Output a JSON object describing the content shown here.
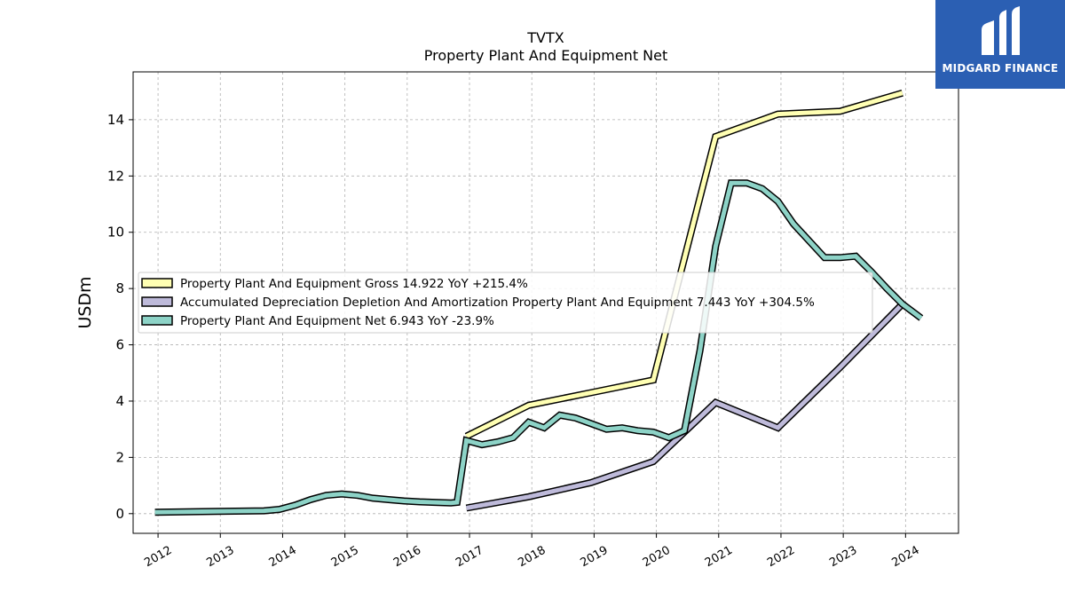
{
  "chart_data": {
    "type": "line",
    "title": "TVTX",
    "subtitle": "Property Plant And Equipment Net",
    "ylabel": "USDm",
    "xlabel": "",
    "xlim": [
      2011.6,
      2024.85
    ],
    "ylim": [
      -0.7,
      15.7
    ],
    "yticks": [
      0,
      2,
      4,
      6,
      8,
      10,
      12,
      14
    ],
    "xticks": [
      "2012",
      "2013",
      "2014",
      "2015",
      "2016",
      "2017",
      "2018",
      "2019",
      "2020",
      "2021",
      "2022",
      "2023",
      "2024"
    ],
    "grid": true,
    "legend_position": "center-left",
    "series": [
      {
        "name": "Property Plant And Equipment Gross  14.922 YoY +215.4%",
        "color": "#ffffb3",
        "x": [
          2016.95,
          2017.95,
          2018.95,
          2019.95,
          2020.95,
          2021.95,
          2022.95,
          2023.95
        ],
        "y": [
          2.75,
          3.85,
          4.3,
          4.75,
          13.4,
          14.2,
          14.3,
          14.95
        ]
      },
      {
        "name": "Accumulated Depreciation Depletion And Amortization Property Plant And Equipment  7.443 YoY +304.5%",
        "color": "#bebada",
        "x": [
          2016.95,
          2017.95,
          2018.95,
          2019.95,
          2020.95,
          2021.95,
          2022.95,
          2023.95
        ],
        "y": [
          0.2,
          0.6,
          1.1,
          1.85,
          3.95,
          3.05,
          5.2,
          7.45
        ]
      },
      {
        "name": "Property Plant And Equipment Net  6.943 YoY -23.9%",
        "color": "#8dd3c7",
        "x": [
          2011.95,
          2012.95,
          2013.7,
          2013.95,
          2014.2,
          2014.45,
          2014.7,
          2014.95,
          2015.2,
          2015.45,
          2015.7,
          2015.95,
          2016.2,
          2016.45,
          2016.7,
          2016.8,
          2016.95,
          2017.2,
          2017.45,
          2017.7,
          2017.95,
          2018.2,
          2018.45,
          2018.7,
          2018.95,
          2019.2,
          2019.45,
          2019.7,
          2019.95,
          2020.2,
          2020.45,
          2020.7,
          2020.95,
          2021.2,
          2021.45,
          2021.7,
          2021.95,
          2022.2,
          2022.45,
          2022.7,
          2022.95,
          2023.2,
          2023.45,
          2023.7,
          2023.95,
          2024.25
        ],
        "y": [
          0.05,
          0.08,
          0.1,
          0.15,
          0.3,
          0.5,
          0.65,
          0.7,
          0.65,
          0.55,
          0.5,
          0.45,
          0.42,
          0.4,
          0.38,
          0.4,
          2.6,
          2.45,
          2.55,
          2.7,
          3.25,
          3.05,
          3.5,
          3.4,
          3.2,
          3.0,
          3.05,
          2.95,
          2.9,
          2.7,
          2.95,
          5.8,
          9.5,
          11.75,
          11.75,
          11.55,
          11.1,
          10.3,
          9.7,
          9.1,
          9.1,
          9.15,
          8.6,
          8.0,
          7.45,
          6.95
        ]
      }
    ]
  },
  "logo": {
    "text": "MIDGARD FINANCE"
  }
}
